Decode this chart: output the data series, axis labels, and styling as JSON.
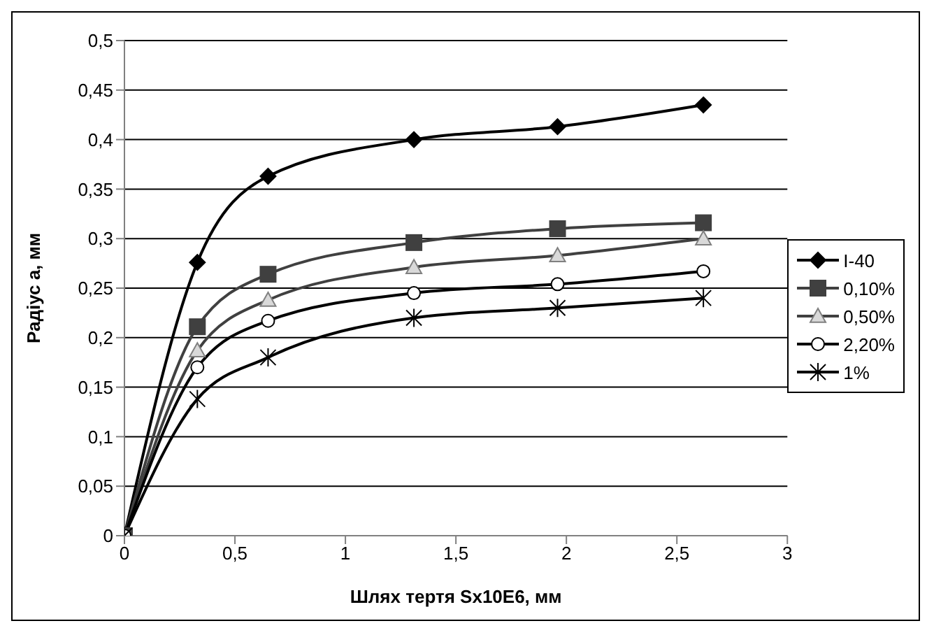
{
  "chart_data": {
    "type": "line",
    "xlabel": "Шлях тертя Sx10E6, мм",
    "ylabel": "Радіус а, мм",
    "x": [
      0,
      0.33,
      0.65,
      1.31,
      1.96,
      2.62
    ],
    "series": [
      {
        "name": "І-40",
        "color": "#000000",
        "marker": "diamond",
        "values": [
          0,
          0.276,
          0.363,
          0.4,
          0.413,
          0.435
        ]
      },
      {
        "name": "0,10%",
        "color": "#404040",
        "marker": "square",
        "values": [
          0,
          0.211,
          0.264,
          0.296,
          0.31,
          0.316
        ]
      },
      {
        "name": "0,50%",
        "color": "#404040",
        "marker": "triangle",
        "values": [
          0,
          0.187,
          0.238,
          0.271,
          0.283,
          0.3
        ]
      },
      {
        "name": "2,20%",
        "color": "#000000",
        "marker": "circle",
        "values": [
          0,
          0.17,
          0.217,
          0.245,
          0.254,
          0.267
        ]
      },
      {
        "name": "1%",
        "color": "#000000",
        "marker": "cross",
        "values": [
          0,
          0.138,
          0.18,
          0.22,
          0.23,
          0.24
        ]
      }
    ],
    "xlim": [
      0,
      3
    ],
    "xticks": [
      0,
      {
        "value": 0.5,
        "label": "0,5"
      },
      1,
      {
        "value": 1.5,
        "label": "1,5"
      },
      2,
      {
        "value": 2.5,
        "label": "2,5"
      },
      3
    ],
    "ylim": [
      0,
      0.5
    ],
    "yticks": [
      0,
      {
        "value": 0.05,
        "label": "0,05"
      },
      {
        "value": 0.1,
        "label": "0,1"
      },
      {
        "value": 0.15,
        "label": "0,15"
      },
      {
        "value": 0.2,
        "label": "0,2"
      },
      {
        "value": 0.25,
        "label": "0,25"
      },
      {
        "value": 0.3,
        "label": "0,3"
      },
      {
        "value": 0.35,
        "label": "0,35"
      },
      {
        "value": 0.4,
        "label": "0,4"
      },
      {
        "value": 0.45,
        "label": "0,45"
      },
      {
        "value": 0.5,
        "label": "0,5"
      }
    ],
    "grid": "y",
    "legend": "right"
  }
}
